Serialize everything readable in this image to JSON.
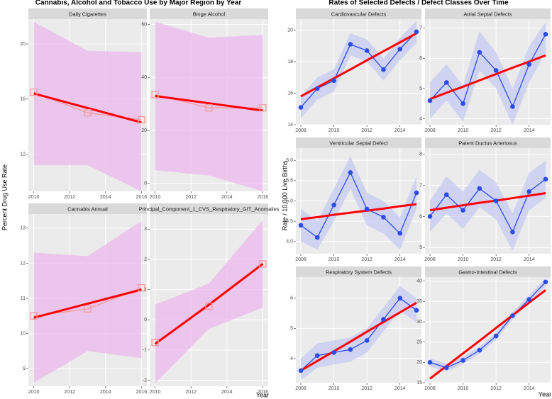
{
  "chart_data": [
    {
      "type": "line",
      "title": "Cannabis, Alcohol and Tobacco Use by Major Region by Year",
      "x_label": "Year",
      "y_label": "Percent Drug Use Rate",
      "xlim": [
        2009.7,
        2016.3
      ],
      "xticks": [
        2010,
        2012,
        2014,
        2016
      ],
      "point_color": "#f49a9a",
      "point_shape": "square",
      "fit_color": "#ff0000",
      "band_color": "#ebb8eb",
      "panels": [
        {
          "title": "Daily Cigarettes",
          "x": [
            2010,
            2013,
            2016
          ],
          "values": [
            16.5,
            15.0,
            14.5
          ],
          "fit": [
            16.4,
            15.35,
            14.3
          ],
          "ci_lower": [
            11.2,
            11.2,
            9.3
          ],
          "ci_upper": [
            21.6,
            19.5,
            19.4
          ],
          "ylim": [
            9.3,
            21.8
          ],
          "yticks": [
            12,
            16,
            20
          ]
        },
        {
          "title": "Binge Alcohol",
          "x": [
            2010,
            2013,
            2016
          ],
          "values": [
            33.5,
            28.5,
            28.5
          ],
          "fit": [
            33,
            30.25,
            27.5
          ],
          "ci_lower": [
            5,
            3,
            -3
          ],
          "ci_upper": [
            61,
            55,
            56
          ],
          "ylim": [
            -3,
            62
          ],
          "yticks": [
            0,
            20,
            40,
            60
          ]
        },
        {
          "title": "Cannabis Annual",
          "x": [
            2010,
            2013,
            2016
          ],
          "values": [
            10.5,
            10.7,
            11.3
          ],
          "fit": [
            10.45,
            10.85,
            11.25
          ],
          "ci_lower": [
            8.6,
            9.5,
            9.3
          ],
          "ci_upper": [
            12.3,
            12.2,
            13.2
          ],
          "ylim": [
            8.5,
            13.4
          ],
          "yticks": [
            9,
            10,
            11,
            12,
            13
          ]
        },
        {
          "title": "Principal_Component_1_CVS_Respiratory_GIT_Anomalies",
          "x": [
            2010,
            2013,
            2016
          ],
          "values": [
            -0.75,
            0.45,
            1.85
          ],
          "fit": [
            -0.8,
            0.5,
            1.85
          ],
          "ci_lower": [
            -2.1,
            -0.3,
            0.4
          ],
          "ci_upper": [
            0.5,
            1.2,
            3.3
          ],
          "ylim": [
            -2.2,
            3.5
          ],
          "yticks": [
            -2,
            -1,
            0,
            1,
            2,
            3
          ]
        }
      ]
    },
    {
      "type": "line",
      "title": "Rates of Selected Defects / Defect Classes Over Time",
      "x_label": "Year",
      "y_label": "Rate / 10,000 Live Births",
      "xlim": [
        2007.7,
        2015.3
      ],
      "xticks": [
        2008,
        2010,
        2012,
        2014
      ],
      "point_color": "#2a4de8",
      "point_shape": "circle",
      "fit_color": "#ff0000",
      "band_color": "#c6c9f2",
      "panels": [
        {
          "title": "Cardiovascular Defects",
          "x": [
            2008,
            2009,
            2010,
            2011,
            2012,
            2013,
            2014,
            2015
          ],
          "values": [
            15.1,
            16.3,
            16.8,
            19.1,
            18.7,
            17.5,
            18.8,
            19.9
          ],
          "fit": [
            15.8,
            16.37,
            16.94,
            17.51,
            18.09,
            18.66,
            19.23,
            19.8
          ],
          "ci_lower": [
            14.4,
            15.6,
            16.1,
            18.4,
            18.0,
            16.8,
            18.1,
            19.2
          ],
          "ci_upper": [
            15.8,
            17.0,
            17.5,
            19.8,
            19.4,
            18.2,
            19.5,
            20.6
          ],
          "ylim": [
            14,
            20.7
          ],
          "yticks": [
            14,
            16,
            18,
            20
          ]
        },
        {
          "title": "Atrial Septal Defects",
          "x": [
            2008,
            2009,
            2010,
            2011,
            2012,
            2013,
            2014,
            2015
          ],
          "values": [
            4.6,
            5.2,
            4.5,
            6.2,
            5.6,
            4.4,
            5.8,
            6.8
          ],
          "fit": [
            4.65,
            4.86,
            5.06,
            5.27,
            5.48,
            5.69,
            5.89,
            6.1
          ],
          "ci_lower": [
            4.0,
            4.6,
            3.9,
            5.6,
            5.0,
            3.8,
            5.2,
            6.2
          ],
          "ci_upper": [
            5.2,
            5.8,
            5.1,
            6.9,
            6.2,
            5.0,
            6.4,
            7.2
          ],
          "ylim": [
            3.8,
            7.3
          ],
          "yticks": [
            4,
            5,
            6,
            7
          ]
        },
        {
          "title": "Ventricular Septal Defect",
          "x": [
            2008,
            2009,
            2010,
            2011,
            2012,
            2013,
            2014,
            2015
          ],
          "values": [
            4.4,
            4.1,
            4.9,
            5.7,
            4.8,
            4.6,
            4.2,
            5.2
          ],
          "fit": [
            4.55,
            4.6,
            4.66,
            4.71,
            4.76,
            4.81,
            4.87,
            4.92
          ],
          "ci_lower": [
            4.0,
            3.8,
            4.5,
            5.3,
            4.4,
            4.2,
            3.8,
            4.8
          ],
          "ci_upper": [
            4.8,
            4.5,
            5.3,
            6.1,
            5.2,
            5.0,
            4.6,
            5.6
          ],
          "ylim": [
            3.7,
            6.3
          ],
          "yticks": [
            {
              "value": 4,
              "label": "4.0"
            },
            4.5,
            {
              "value": 5,
              "label": "5.0"
            },
            5.5,
            {
              "value": 6,
              "label": "6.0"
            }
          ]
        },
        {
          "title": "Patent Ductus Arteriosus",
          "x": [
            2008,
            2009,
            2010,
            2011,
            2012,
            2013,
            2014,
            2015
          ],
          "values": [
            6.0,
            6.7,
            6.2,
            6.9,
            6.5,
            5.5,
            6.8,
            7.2
          ],
          "fit": [
            6.2,
            6.28,
            6.36,
            6.44,
            6.51,
            6.59,
            6.67,
            6.75
          ],
          "ci_lower": [
            5.5,
            6.1,
            5.6,
            6.3,
            5.9,
            4.9,
            6.2,
            6.6
          ],
          "ci_upper": [
            6.5,
            7.3,
            6.8,
            7.5,
            7.1,
            6.1,
            7.4,
            7.8
          ],
          "ylim": [
            4.8,
            8.2
          ],
          "yticks": [
            5,
            6,
            7,
            8
          ]
        },
        {
          "title": "Respiratory System Defects",
          "x": [
            2008,
            2009,
            2010,
            2011,
            2012,
            2013,
            2014,
            2015
          ],
          "values": [
            3.6,
            4.1,
            4.2,
            4.3,
            4.6,
            5.3,
            6.0,
            5.6
          ],
          "fit": [
            3.6,
            3.92,
            4.24,
            4.56,
            4.89,
            5.21,
            5.53,
            5.85
          ],
          "ci_lower": [
            3.3,
            3.7,
            3.8,
            3.9,
            4.2,
            4.9,
            5.6,
            5.2
          ],
          "ci_upper": [
            4.0,
            4.5,
            4.6,
            4.7,
            5.0,
            5.7,
            6.4,
            6.0
          ],
          "ylim": [
            3.2,
            6.7
          ],
          "yticks": [
            4,
            5,
            6
          ]
        },
        {
          "title": "Gastro-Intestinal Defects",
          "x": [
            2008,
            2009,
            2010,
            2011,
            2012,
            2013,
            2014,
            2015
          ],
          "values": [
            20,
            18.7,
            20.5,
            23,
            26.5,
            31.5,
            35.5,
            39.8
          ],
          "fit": [
            16,
            19.1,
            22.2,
            25.3,
            28.5,
            31.6,
            34.7,
            37.8
          ],
          "ci_lower": [
            19.0,
            17.8,
            19.6,
            22.1,
            25.6,
            30.6,
            34.5,
            38.8
          ],
          "ci_upper": [
            21.0,
            19.6,
            21.4,
            23.9,
            27.4,
            32.4,
            36.5,
            40.8
          ],
          "ylim": [
            15,
            41
          ],
          "yticks": [
            15,
            20,
            25,
            30,
            35,
            40
          ]
        }
      ]
    }
  ]
}
